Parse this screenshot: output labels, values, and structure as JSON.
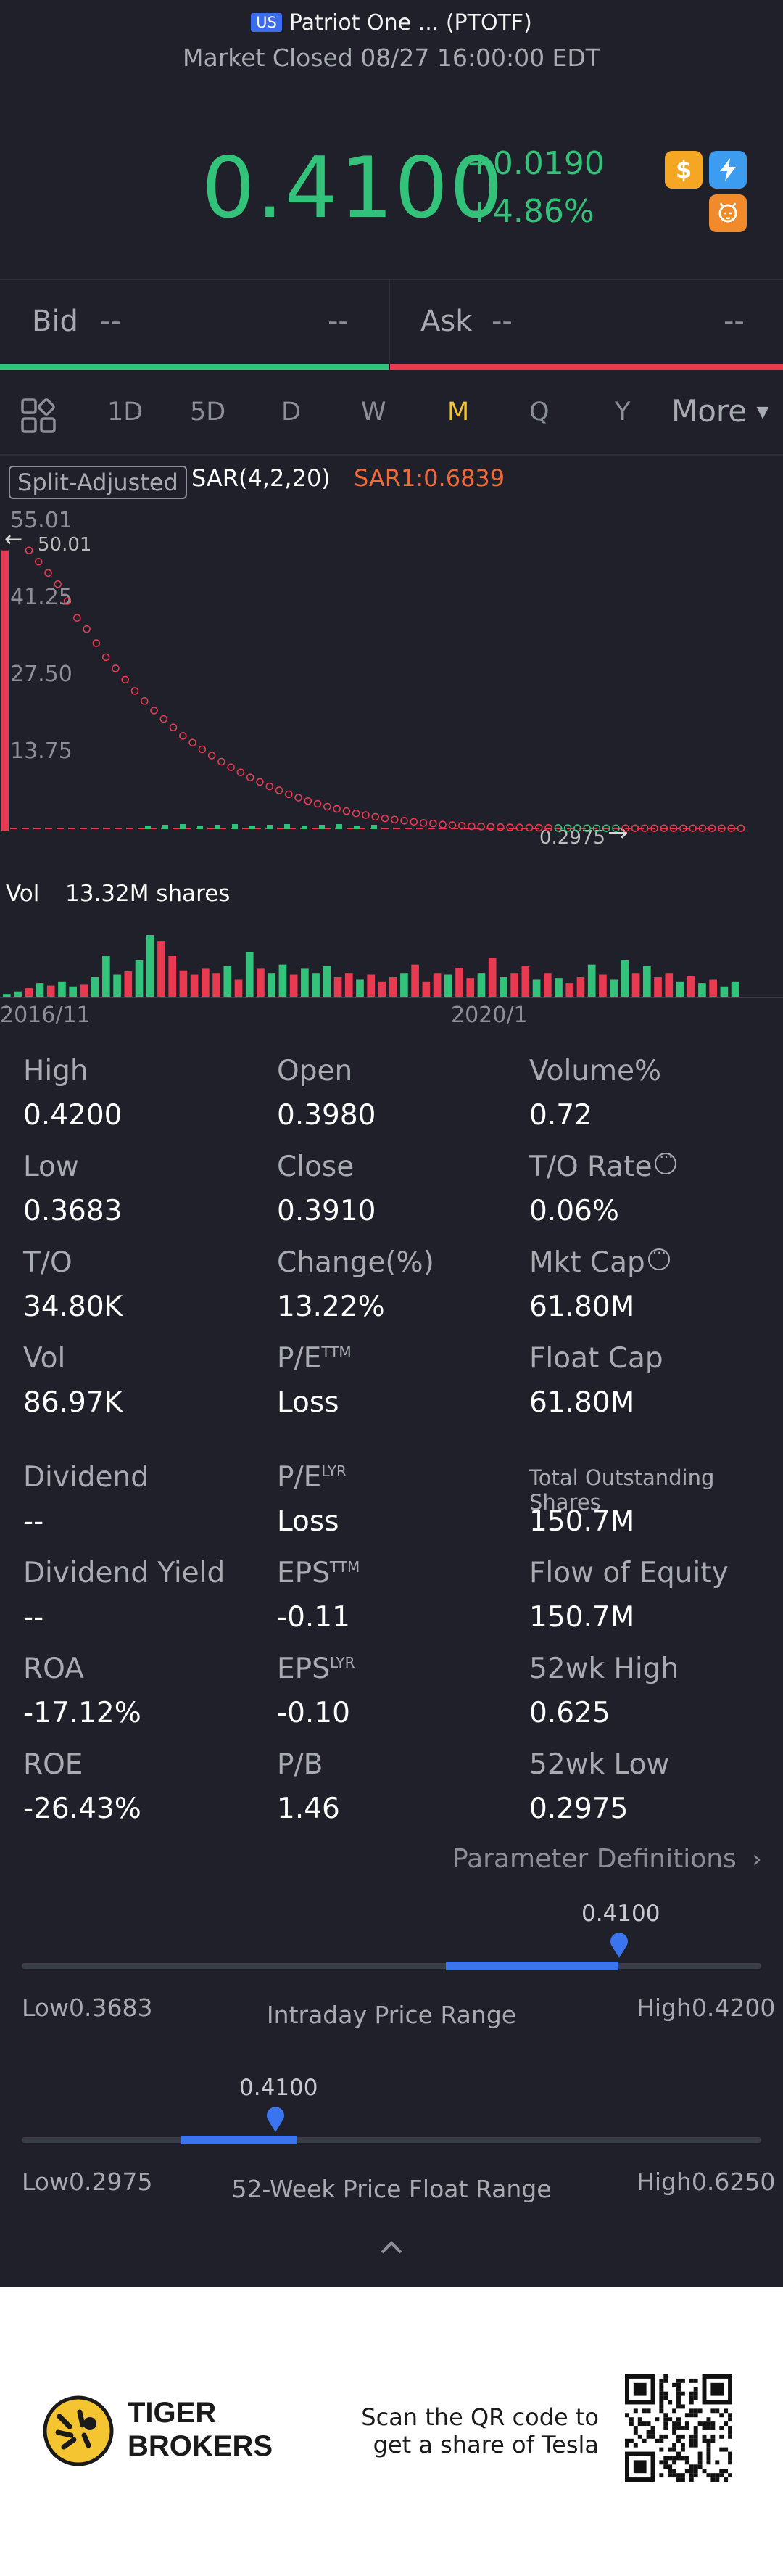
{
  "header": {
    "market_badge": "US",
    "title": "Patriot One ... (PTOTF)",
    "status": "Market Closed 08/27 16:00:00 EDT",
    "price": "0.4100",
    "change": "+0.0190",
    "change_pct": "+4.86%",
    "colors": {
      "up": "#33c27a",
      "down": "#e83a50",
      "accent": "#3b74ef",
      "active_tab": "#f5c431"
    }
  },
  "bidask": {
    "bid_label": "Bid",
    "bid_price": "--",
    "bid_size": "--",
    "ask_label": "Ask",
    "ask_price": "--",
    "ask_size": "--"
  },
  "tabs": {
    "items": [
      "1D",
      "5D",
      "D",
      "W",
      "M",
      "Q",
      "Y"
    ],
    "active": "M",
    "more": "More"
  },
  "chart": {
    "split_label": "Split-Adjusted",
    "indicator": "SAR(4,2,20)",
    "indicator_value": "SAR1:0.6839",
    "y_ticks": [
      "55.01",
      "41.25",
      "27.50",
      "13.75"
    ],
    "max_label": "50.01",
    "min_label": "0.2975",
    "vol_label": "Vol",
    "vol_value": "13.32M shares",
    "x_ticks": [
      "2016/11",
      "2020/1"
    ]
  },
  "chart_data": {
    "type": "bar",
    "title": "",
    "ylim": [
      0,
      55.01
    ],
    "y_ticks": [
      55.01,
      41.25,
      27.5,
      13.75
    ],
    "price_high": 50.01,
    "price_low": 0.2975,
    "sar_dots": [
      50,
      48,
      46,
      44,
      41,
      38,
      36,
      33.5,
      31,
      29,
      27,
      25,
      23.2,
      21.5,
      20,
      18.5,
      17,
      15.8,
      14.6,
      13.5,
      12.4,
      11.4,
      10.5,
      9.6,
      8.8,
      8,
      7.3,
      6.6,
      6,
      5.4,
      4.9,
      4.4,
      4,
      3.6,
      3.2,
      2.9,
      2.6,
      2.3,
      2.1,
      1.9,
      1.7,
      1.5,
      1.4,
      1.2,
      1.1,
      1,
      0.9,
      0.85,
      0.8,
      0.75,
      0.7,
      0.68,
      0.66,
      0.64,
      0.62,
      0.6,
      0.58,
      0.57,
      0.56,
      0.55,
      0.55,
      0.55,
      0.55,
      0.55,
      0.55,
      0.55,
      0.55,
      0.55,
      0.55,
      0.55,
      0.55,
      0.55,
      0.55,
      0.55,
      0.55
    ],
    "volume": [
      0.05,
      0.08,
      0.12,
      0.18,
      0.15,
      0.2,
      0.14,
      0.16,
      0.25,
      0.5,
      0.28,
      0.32,
      0.45,
      0.75,
      0.68,
      0.5,
      0.33,
      0.28,
      0.35,
      0.3,
      0.38,
      0.22,
      0.55,
      0.35,
      0.3,
      0.4,
      0.28,
      0.35,
      0.3,
      0.38,
      0.25,
      0.3,
      0.22,
      0.28,
      0.2,
      0.25,
      0.3,
      0.4,
      0.2,
      0.3,
      0.28,
      0.36,
      0.24,
      0.3,
      0.48,
      0.25,
      0.3,
      0.38,
      0.22,
      0.3,
      0.24,
      0.18,
      0.25,
      0.4,
      0.28,
      0.22,
      0.45,
      0.3,
      0.38,
      0.25,
      0.3,
      0.2,
      0.26,
      0.18,
      0.22,
      0.14,
      0.2
    ],
    "volume_up": [
      1,
      1,
      0,
      1,
      0,
      1,
      1,
      0,
      1,
      1,
      1,
      0,
      1,
      1,
      0,
      0,
      0,
      0,
      0,
      0,
      1,
      0,
      1,
      0,
      1,
      1,
      0,
      1,
      1,
      1,
      0,
      0,
      1,
      0,
      0,
      0,
      1,
      0,
      0,
      0,
      1,
      0,
      0,
      1,
      0,
      1,
      0,
      0,
      1,
      0,
      1,
      0,
      0,
      1,
      0,
      1,
      1,
      0,
      1,
      0,
      0,
      1,
      0,
      1,
      0,
      1,
      1
    ],
    "x_ticks": [
      "2016/11",
      "2020/1"
    ]
  },
  "stats": {
    "rows": [
      [
        {
          "label": "High",
          "value": "0.4200"
        },
        {
          "label": "Open",
          "value": "0.3980"
        },
        {
          "label": "Volume%",
          "value": "0.72"
        }
      ],
      [
        {
          "label": "Low",
          "value": "0.3683"
        },
        {
          "label": "Close",
          "value": "0.3910"
        },
        {
          "label": "T/O Rate",
          "value": "0.06%"
        }
      ],
      [
        {
          "label": "T/O",
          "value": "34.80K"
        },
        {
          "label": "Change(%)",
          "value": "13.22%"
        },
        {
          "label": "Mkt Cap",
          "value": "61.80M"
        }
      ],
      [
        {
          "label": "Vol",
          "value": "86.97K"
        },
        {
          "label": "P/E",
          "sup": "TTM",
          "value": "Loss"
        },
        {
          "label": "Float Cap",
          "value": "61.80M"
        }
      ],
      [
        {
          "label": "Dividend",
          "value": "--"
        },
        {
          "label": "P/E",
          "sup": "LYR",
          "value": "Loss"
        },
        {
          "label": "Total Outstanding Shares",
          "value": "150.7M"
        }
      ],
      [
        {
          "label": "Dividend Yield",
          "value": "--"
        },
        {
          "label": "EPS",
          "sup": "TTM",
          "value": "-0.11"
        },
        {
          "label": "Flow of Equity",
          "value": "150.7M"
        }
      ],
      [
        {
          "label": "ROA",
          "value": "-17.12%"
        },
        {
          "label": "EPS",
          "sup": "LYR",
          "value": "-0.10"
        },
        {
          "label": "52wk High",
          "value": "0.625"
        }
      ],
      [
        {
          "label": "ROE",
          "value": "-26.43%"
        },
        {
          "label": "P/B",
          "value": "1.46"
        },
        {
          "label": "52wk Low",
          "value": "0.2975"
        }
      ]
    ],
    "param_link": "Parameter Definitions"
  },
  "intraday": {
    "current": "0.4100",
    "low_label": "Low",
    "low": "0.3683",
    "title": "Intraday Price Range",
    "high_label": "High",
    "high": "0.4200",
    "position": 0.81
  },
  "week52": {
    "current": "0.4100",
    "low_label": "Low",
    "low": "0.2975",
    "title": "52-Week Price Float Range",
    "high_label": "High",
    "high": "0.6250",
    "position": 0.34
  },
  "footer": {
    "brand_line1": "TIGER",
    "brand_line2": "BROKERS",
    "cta_line1": "Scan the QR code to",
    "cta_line2": "get a share of Tesla"
  }
}
